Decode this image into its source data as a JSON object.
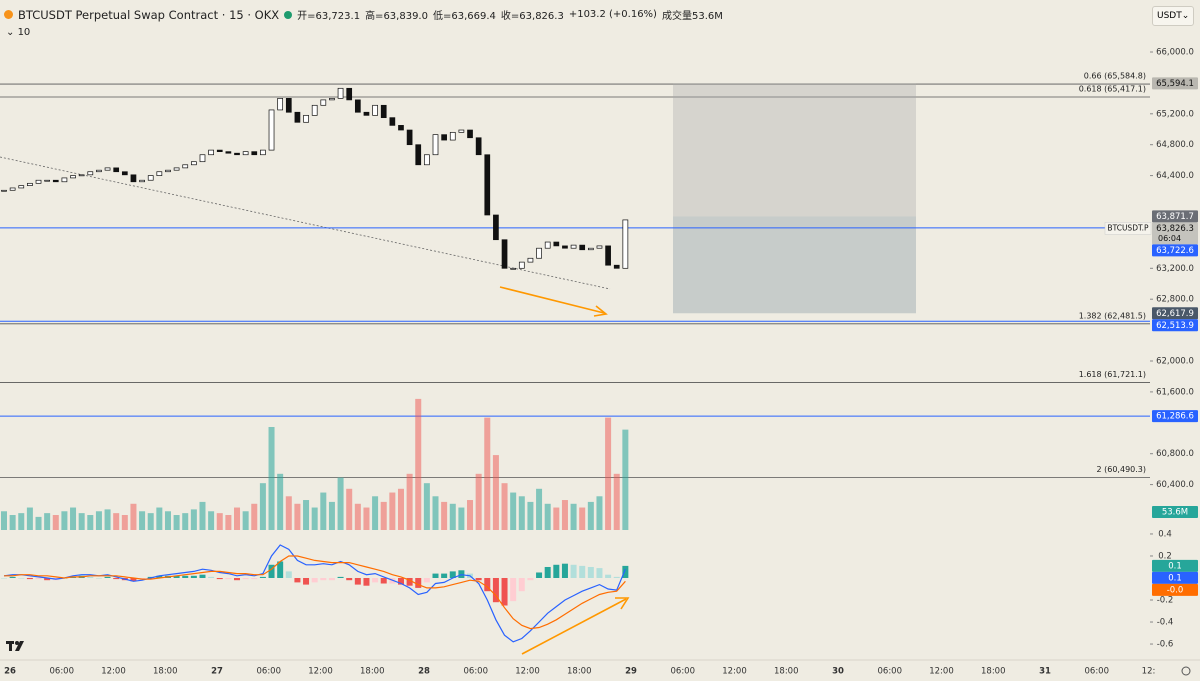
{
  "header": {
    "symbol": "BTCUSDT Perpetual Swap Contract · 15 · OKX",
    "ohlc": [
      "开=63,723.1",
      "高=63,839.0",
      "低=63,669.4",
      "收=63,826.3",
      "+103.2 (+0.16%)",
      "成交量53.6M"
    ],
    "indicator": "10",
    "currency": "USDT"
  },
  "chart_data": {
    "type": "candlestick",
    "closes": [
      64210,
      64240,
      64270,
      64300,
      64340,
      64340,
      64320,
      64370,
      64400,
      64410,
      64450,
      64470,
      64500,
      64450,
      64410,
      64320,
      64340,
      64400,
      64450,
      64470,
      64500,
      64540,
      64580,
      64670,
      64730,
      64710,
      64690,
      64670,
      64710,
      64670,
      64730,
      65250,
      65400,
      65220,
      65090,
      65180,
      65310,
      65380,
      65400,
      65530,
      65380,
      65220,
      65180,
      65310,
      65150,
      65050,
      64990,
      64800,
      64540,
      64670,
      64930,
      64860,
      64960,
      64990,
      64890,
      64670,
      63890,
      63570,
      63200,
      63200,
      63280,
      63330,
      63460,
      63540,
      63490,
      63460,
      63500,
      63440,
      63460,
      63490,
      63240,
      63200,
      63826.3
    ],
    "ylim": [
      59812.3,
      66673.1
    ],
    "yticks": [
      {
        "value": 66000,
        "label": "66,000.0"
      },
      {
        "value": 65200,
        "label": "65,200.0"
      },
      {
        "value": 64800,
        "label": "64,800.0"
      },
      {
        "value": 64400,
        "label": "64,400.0"
      },
      {
        "value": 63200,
        "label": "63,200.0"
      },
      {
        "value": 62800,
        "label": "62,800.0"
      },
      {
        "value": 62000,
        "label": "62,000.0"
      },
      {
        "value": 61600,
        "label": "61,600.0"
      },
      {
        "value": 60800,
        "label": "60,800.0"
      },
      {
        "value": 60400,
        "label": "60,400.0"
      }
    ],
    "time_labels": [
      "26",
      "06:00",
      "12:00",
      "18:00",
      "27",
      "06:00",
      "12:00",
      "18:00",
      "28",
      "06:00",
      "12:00",
      "18:00",
      "29",
      "06:00",
      "12:00",
      "18:00",
      "30",
      "06:00",
      "12:00",
      "18:00",
      "31",
      "06:00",
      "12:"
    ],
    "fib_levels": [
      {
        "value": 65584.8,
        "label": "0.66 (65,584.8)"
      },
      {
        "value": 65417.1,
        "label": "0.618 (65,417.1)"
      },
      {
        "value": 62481.5,
        "label": "1.382 (62,481.5)"
      },
      {
        "value": 61721.1,
        "label": "1.618 (61,721.1)"
      },
      {
        "value": 60490.3,
        "label": "2 (60,490.3)"
      }
    ],
    "price_tags": [
      {
        "value": 65594.1,
        "label": "65,594.1",
        "color": "#b9b7b0",
        "line": false
      },
      {
        "value": 63871.7,
        "label": "63,871.7",
        "color": "#6b6e75",
        "line": false
      },
      {
        "value": 63722.6,
        "label": "63,722.6",
        "color": "#2962ff",
        "line": true
      },
      {
        "value": 62617.9,
        "label": "62,617.9",
        "color": "#4a5869",
        "line": false
      },
      {
        "value": 62513.9,
        "label": "62,513.9",
        "color": "#2962ff",
        "line": true
      },
      {
        "value": 61286.6,
        "label": "61,286.6",
        "color": "#2962ff",
        "line": true
      }
    ],
    "current_price": {
      "label": "63,826.3",
      "countdown": "06:04",
      "symbol": "BTCUSDT.P",
      "color": "#c4c3bd"
    },
    "volume": {
      "ylim": [
        0,
        283
      ],
      "last_label": "53.6M",
      "values": [
        10,
        8,
        9,
        12,
        7,
        9,
        8,
        10,
        12,
        9,
        8,
        10,
        11,
        9,
        8,
        14,
        10,
        9,
        12,
        10,
        8,
        9,
        11,
        15,
        10,
        9,
        8,
        12,
        10,
        14,
        25,
        55,
        30,
        18,
        14,
        16,
        12,
        20,
        15,
        28,
        22,
        14,
        12,
        18,
        15,
        20,
        22,
        30,
        70,
        25,
        18,
        15,
        14,
        12,
        16,
        30,
        60,
        40,
        25,
        20,
        18,
        15,
        22,
        14,
        12,
        16,
        14,
        12,
        15,
        18,
        60,
        30,
        53.6
      ]
    },
    "macd": {
      "ylim": [
        -0.745,
        0.436
      ],
      "yticks": [
        0.4,
        0.2,
        -0.2,
        -0.4,
        -0.6
      ],
      "histogram": {
        "last_label": "0.1",
        "values": [
          0,
          0.01,
          0,
          -0.01,
          -0.01,
          -0.02,
          -0.02,
          0,
          0.01,
          0.02,
          0.01,
          0,
          0.01,
          -0.01,
          -0.02,
          -0.03,
          -0.01,
          0.01,
          0.02,
          0.02,
          0.02,
          0.02,
          0.02,
          0.03,
          0.01,
          -0.01,
          -0.01,
          -0.02,
          -0.01,
          -0.01,
          0.01,
          0.12,
          0.15,
          0.06,
          -0.04,
          -0.06,
          -0.04,
          -0.02,
          -0.02,
          0.01,
          -0.02,
          -0.06,
          -0.07,
          -0.04,
          -0.05,
          -0.05,
          -0.06,
          -0.07,
          -0.09,
          -0.04,
          0.04,
          0.04,
          0.06,
          0.07,
          0.04,
          -0.02,
          -0.12,
          -0.22,
          -0.25,
          -0.21,
          -0.12,
          -0.02,
          0.05,
          0.1,
          0.12,
          0.13,
          0.12,
          0.11,
          0.1,
          0.09,
          0.03,
          0.01,
          0.11
        ]
      },
      "series": [
        {
          "color": "#2962ff",
          "last_label": "0.1",
          "values": [
            0.02,
            0.03,
            0.03,
            0.02,
            0.01,
            0.0,
            -0.01,
            0.0,
            0.02,
            0.03,
            0.03,
            0.02,
            0.03,
            0.01,
            -0.01,
            -0.03,
            -0.02,
            0.0,
            0.02,
            0.03,
            0.04,
            0.05,
            0.06,
            0.08,
            0.07,
            0.05,
            0.04,
            0.02,
            0.03,
            0.02,
            0.04,
            0.2,
            0.3,
            0.26,
            0.16,
            0.12,
            0.12,
            0.13,
            0.12,
            0.15,
            0.12,
            0.06,
            0.03,
            0.04,
            0.01,
            -0.02,
            -0.05,
            -0.09,
            -0.15,
            -0.13,
            -0.05,
            -0.04,
            0.0,
            0.03,
            0.02,
            -0.05,
            -0.2,
            -0.38,
            -0.52,
            -0.58,
            -0.55,
            -0.48,
            -0.4,
            -0.32,
            -0.26,
            -0.2,
            -0.16,
            -0.12,
            -0.09,
            -0.06,
            -0.1,
            -0.11,
            0.08
          ]
        },
        {
          "color": "#ff6d00",
          "last_label": "-0.0",
          "values": [
            0.02,
            0.02,
            0.03,
            0.03,
            0.02,
            0.02,
            0.01,
            0.0,
            0.01,
            0.01,
            0.02,
            0.02,
            0.02,
            0.02,
            0.01,
            0.0,
            -0.01,
            -0.01,
            0.0,
            0.01,
            0.02,
            0.03,
            0.04,
            0.05,
            0.06,
            0.06,
            0.05,
            0.04,
            0.04,
            0.03,
            0.03,
            0.08,
            0.15,
            0.2,
            0.2,
            0.18,
            0.16,
            0.15,
            0.14,
            0.14,
            0.14,
            0.12,
            0.1,
            0.08,
            0.06,
            0.03,
            0.01,
            -0.02,
            -0.06,
            -0.09,
            -0.09,
            -0.08,
            -0.06,
            -0.04,
            -0.02,
            -0.03,
            -0.08,
            -0.16,
            -0.27,
            -0.37,
            -0.43,
            -0.46,
            -0.45,
            -0.42,
            -0.38,
            -0.33,
            -0.28,
            -0.23,
            -0.19,
            -0.15,
            -0.13,
            -0.12,
            -0.03
          ]
        }
      ]
    }
  }
}
